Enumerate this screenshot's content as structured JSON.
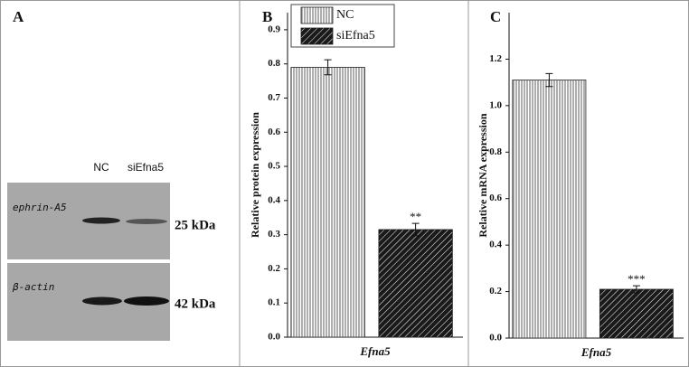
{
  "panel_a": {
    "label": "A",
    "lanes": [
      "NC",
      "siEfna5"
    ],
    "blots": [
      {
        "name": "ephrin-A5",
        "size": "25 kDa"
      },
      {
        "name": "β-actin",
        "size": "42 kDa"
      }
    ]
  },
  "chart_data": [
    {
      "type": "bar",
      "panel_label": "B",
      "y_label": "Relative protein expression",
      "categories": [
        "Efna5"
      ],
      "series": [
        {
          "name": "NC",
          "color": "#8c8c8c",
          "pattern": "vertical-stripes",
          "values": [
            0.79
          ],
          "errors": [
            0.022
          ]
        },
        {
          "name": "siEfna5",
          "color": "#1a1a1a",
          "pattern": "diagonal-hatch",
          "values": [
            0.315
          ],
          "errors": [
            0.018
          ],
          "annotation": "**"
        }
      ],
      "ylim": [
        0,
        0.95
      ],
      "yticks": [
        {
          "value": 0,
          "label": "0.0"
        },
        0.1,
        0.2,
        0.3,
        0.4,
        0.5,
        0.6,
        0.7,
        0.8,
        0.9
      ],
      "legend": "top-left"
    },
    {
      "type": "bar",
      "panel_label": "C",
      "y_label": "Relative mRNA expression",
      "categories": [
        "Efna5"
      ],
      "series": [
        {
          "color": "#8c8c8c",
          "pattern": "vertical-stripes",
          "values": [
            1.11
          ],
          "errors": [
            0.028
          ]
        },
        {
          "color": "#1a1a1a",
          "pattern": "diagonal-hatch",
          "values": [
            0.21
          ],
          "errors": [
            0.015
          ],
          "annotation": "***"
        }
      ],
      "ylim": [
        0,
        1.4
      ],
      "yticks": [
        {
          "value": 0,
          "label": "0.0"
        },
        0.2,
        0.4,
        0.6,
        0.8,
        {
          "value": 1,
          "label": "1.0"
        },
        1.2
      ]
    }
  ]
}
